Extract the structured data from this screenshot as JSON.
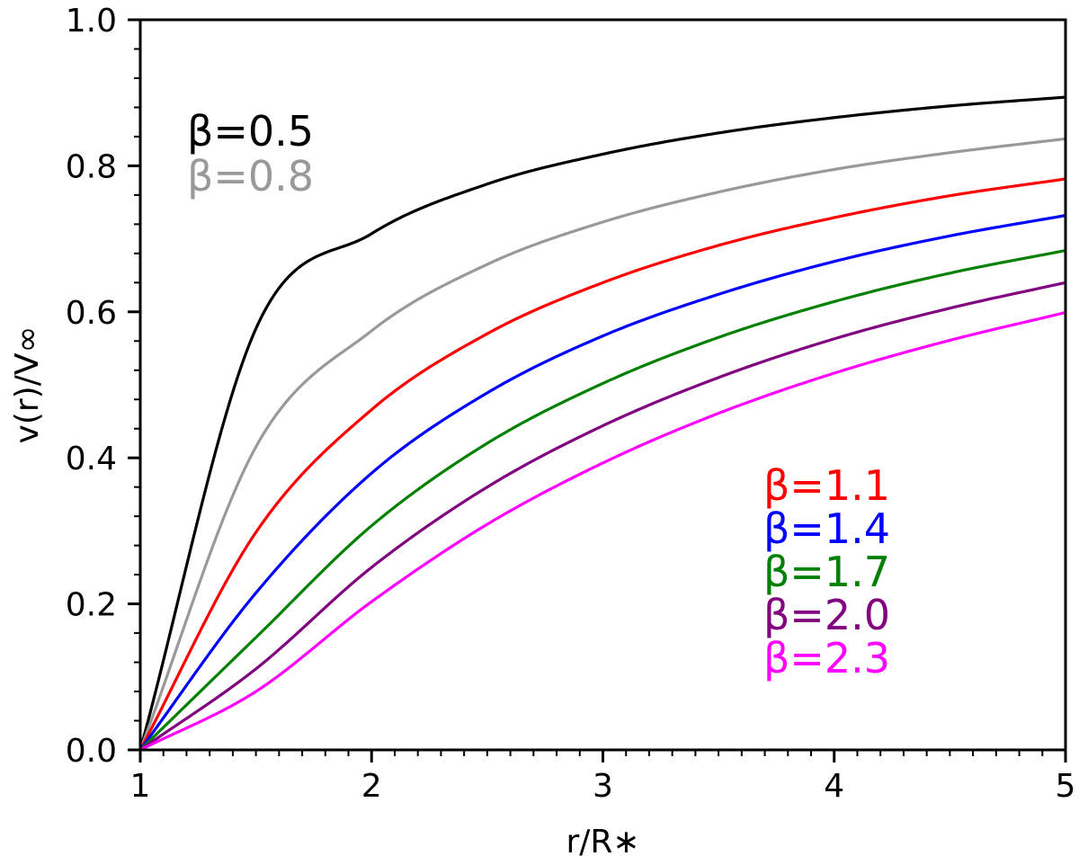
{
  "chart_data": {
    "type": "line",
    "title": "",
    "xlabel": "r/R∗",
    "ylabel": "v(r)/V∞",
    "xlim": [
      1,
      5
    ],
    "ylim": [
      0,
      1.0
    ],
    "xticks": [
      "1",
      "2",
      "3",
      "4",
      "5"
    ],
    "yticks": [
      "0.0",
      "0.2",
      "0.4",
      "0.6",
      "0.8",
      "1.0"
    ],
    "grid": false,
    "legend": "none",
    "x": [
      1.0,
      1.5,
      2.0,
      2.5,
      3.0,
      3.5,
      4.0,
      4.5,
      5.0
    ],
    "series": [
      {
        "name": "β=0.5",
        "color": "#000000",
        "values": [
          0.0,
          0.577,
          0.707,
          0.775,
          0.816,
          0.845,
          0.866,
          0.882,
          0.894
        ]
      },
      {
        "name": "β=0.8",
        "color": "#999999",
        "values": [
          0.0,
          0.415,
          0.574,
          0.665,
          0.723,
          0.764,
          0.795,
          0.818,
          0.837
        ]
      },
      {
        "name": "β=1.1",
        "color": "#ff0000",
        "values": [
          0.0,
          0.298,
          0.466,
          0.57,
          0.64,
          0.691,
          0.729,
          0.759,
          0.782
        ]
      },
      {
        "name": "β=1.4",
        "color": "#0000ff",
        "values": [
          0.0,
          0.215,
          0.379,
          0.489,
          0.567,
          0.624,
          0.669,
          0.704,
          0.732
        ]
      },
      {
        "name": "β=1.7",
        "color": "#008000",
        "values": [
          0.0,
          0.154,
          0.307,
          0.42,
          0.502,
          0.565,
          0.614,
          0.653,
          0.684
        ]
      },
      {
        "name": "β=2.0",
        "color": "#800080",
        "values": [
          0.0,
          0.111,
          0.25,
          0.36,
          0.444,
          0.51,
          0.563,
          0.605,
          0.64
        ]
      },
      {
        "name": "β=2.3",
        "color": "#ff00ff",
        "values": [
          0.0,
          0.08,
          0.203,
          0.309,
          0.393,
          0.461,
          0.516,
          0.561,
          0.599
        ]
      }
    ],
    "annotations": [
      {
        "text": "β=0.5",
        "color": "#000000",
        "anchor": "upper-left"
      },
      {
        "text": "β=0.8",
        "color": "#999999",
        "anchor": "upper-left"
      },
      {
        "text": "β=1.1",
        "color": "#ff0000",
        "anchor": "lower-right"
      },
      {
        "text": "β=1.4",
        "color": "#0000ff",
        "anchor": "lower-right"
      },
      {
        "text": "β=1.7",
        "color": "#008000",
        "anchor": "lower-right"
      },
      {
        "text": "β=2.0",
        "color": "#800080",
        "anchor": "lower-right"
      },
      {
        "text": "β=2.3",
        "color": "#ff00ff",
        "anchor": "lower-right"
      }
    ]
  }
}
